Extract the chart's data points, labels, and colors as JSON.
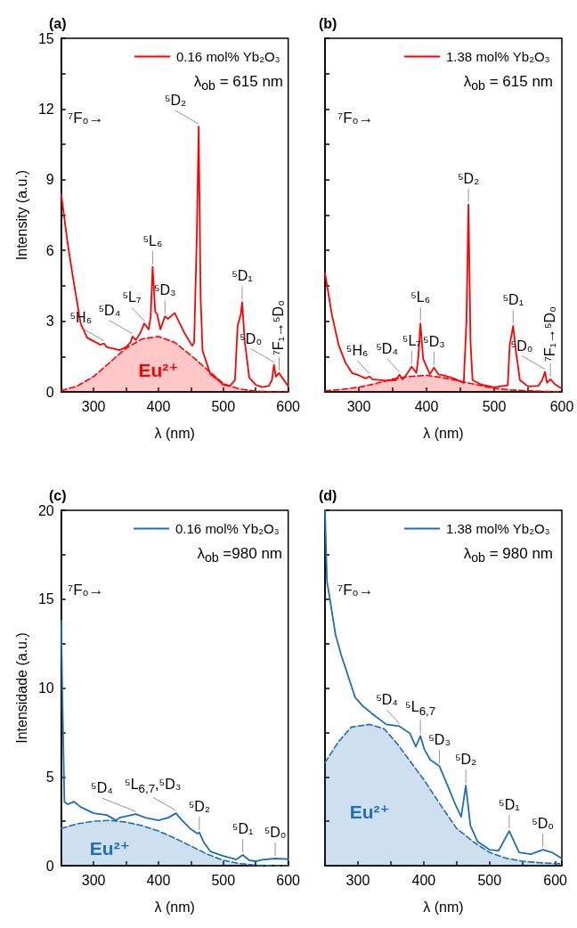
{
  "chart_data": [
    {
      "type": "line",
      "title": "(a)",
      "xlabel": "λ (nm)",
      "ylabel": "Intensity (a.u.)",
      "legend": "top right",
      "xlim": [
        250,
        600
      ],
      "xticks": [
        300,
        {
          "value": 350,
          "label": null
        },
        400,
        {
          "value": 450,
          "label": null
        },
        500,
        {
          "value": 550,
          "label": null
        },
        600
      ],
      "ylim": [
        0,
        15
      ],
      "yticks": [
        0,
        {
          "value": 1.5,
          "label": null
        },
        3,
        {
          "value": 4.5,
          "label": null
        },
        6,
        {
          "value": 7.5,
          "label": null
        },
        9,
        {
          "value": 10.5,
          "label": null
        },
        12,
        {
          "value": 13.5,
          "label": null
        },
        15
      ],
      "series": [
        {
          "name": "0.16 mol% Yb₂O₃",
          "color": "#ff0000",
          "x": [
            250,
            260,
            270,
            280,
            290,
            300,
            310,
            316,
            320,
            340,
            350,
            357,
            360,
            365,
            372,
            378,
            385,
            388,
            391,
            395,
            398,
            403,
            410,
            415,
            425,
            440,
            452,
            455,
            459,
            462,
            465,
            468,
            480,
            490,
            500,
            510,
            518,
            522,
            527,
            529,
            533,
            540,
            550,
            560,
            570,
            575,
            578,
            581,
            586,
            592,
            600
          ],
          "values": [
            8.4,
            6.3,
            4.55,
            2.9,
            2.3,
            2.15,
            2.0,
            2.05,
            1.9,
            1.77,
            1.9,
            2.1,
            2.35,
            2.2,
            2.5,
            2.9,
            2.65,
            3.2,
            5.3,
            3.4,
            3.3,
            2.65,
            3.2,
            3.1,
            3.35,
            2.5,
            1.95,
            2.1,
            6.5,
            11.25,
            4.0,
            1.75,
            0.75,
            0.55,
            0.3,
            0.25,
            0.5,
            2.8,
            3.3,
            3.8,
            2.15,
            0.6,
            0.3,
            0.2,
            0.25,
            0.5,
            1.15,
            0.65,
            0.8,
            0.55,
            0.25
          ]
        },
        {
          "name": "Eu²⁺",
          "type": "area",
          "line_style": "dashed",
          "color": "#ff0000",
          "x": [
            250,
            275,
            300,
            325,
            350,
            375,
            400,
            425,
            450,
            475,
            500,
            525,
            550,
            575,
            600
          ],
          "values": [
            0.05,
            0.25,
            0.65,
            1.25,
            1.85,
            2.25,
            2.35,
            2.1,
            1.55,
            0.95,
            0.35,
            0.12,
            0.03,
            0.0,
            0.0
          ]
        }
      ],
      "annotations": [
        "λ$_{ob}$ = 615 nm",
        "⁷F₀→",
        {
          "text": "⁵H₆",
          "x": 316,
          "y": 2.05
        },
        {
          "text": "⁵D₄",
          "x": 360,
          "y": 2.35
        },
        {
          "text": "⁵L₇",
          "x": 378,
          "y": 2.9
        },
        {
          "text": "⁵L₆",
          "x": 391,
          "y": 5.3
        },
        {
          "text": "⁵D₃",
          "x": 410,
          "y": 3.2
        },
        {
          "text": "⁵D₂",
          "x": 462,
          "y": 11.25
        },
        {
          "text": "⁵D₁",
          "x": 529,
          "y": 3.8
        },
        {
          "text": "⁵D₀",
          "x": 578,
          "y": 1.15
        },
        {
          "text": "⁷F₁→⁵D₀",
          "x": 586,
          "y": 0.8
        }
      ]
    },
    {
      "type": "line",
      "title": "(b)",
      "xlabel": "λ (nm)",
      "legend": "top right",
      "tick_labels": "x",
      "xlim": [
        250,
        600
      ],
      "xticks": [
        300,
        {
          "value": 350,
          "label": null
        },
        400,
        {
          "value": 450,
          "label": null
        },
        500,
        {
          "value": 550,
          "label": null
        },
        600
      ],
      "ylim": [
        0,
        15
      ],
      "yticks": [
        0,
        {
          "value": 1.5,
          "label": null
        },
        3,
        {
          "value": 4.5,
          "label": null
        },
        6,
        {
          "value": 7.5,
          "label": null
        },
        9,
        {
          "value": 10.5,
          "label": null
        },
        12,
        {
          "value": 13.5,
          "label": null
        },
        15
      ],
      "series": [
        {
          "name": "1.38 mol% Yb₂O₃",
          "color": "#ff0000",
          "x": [
            250,
            260,
            270,
            280,
            290,
            300,
            310,
            316,
            320,
            340,
            355,
            360,
            365,
            372,
            378,
            385,
            388,
            391,
            395,
            400,
            405,
            411,
            418,
            425,
            440,
            455,
            459,
            462,
            465,
            468,
            480,
            500,
            520,
            523,
            528,
            532,
            538,
            550,
            565,
            571,
            575,
            578,
            583,
            590,
            600
          ],
          "values": [
            5.05,
            3.3,
            2.0,
            1.25,
            0.8,
            0.7,
            0.57,
            0.65,
            0.53,
            0.48,
            0.5,
            0.73,
            0.53,
            0.8,
            1.07,
            0.8,
            1.5,
            2.9,
            1.4,
            1.07,
            0.75,
            1.03,
            0.73,
            0.7,
            0.57,
            0.38,
            3.0,
            7.95,
            2.15,
            0.5,
            0.32,
            0.19,
            0.28,
            2.0,
            2.8,
            1.75,
            0.5,
            0.23,
            0.25,
            0.5,
            0.85,
            0.38,
            0.53,
            0.32,
            0.13
          ]
        },
        {
          "type": "area",
          "line_style": "dashed",
          "color": "#ff0000",
          "x": [
            250,
            275,
            300,
            325,
            350,
            375,
            400,
            425,
            450,
            475,
            500,
            525,
            550,
            575,
            600
          ],
          "values": [
            0.05,
            0.1,
            0.2,
            0.35,
            0.55,
            0.65,
            0.7,
            0.6,
            0.45,
            0.3,
            0.15,
            0.08,
            0.05,
            0.02,
            0.0
          ]
        }
      ],
      "annotations": [
        "λ$_{ob}$ = 615 nm",
        "⁷F₀→",
        {
          "text": "⁵H₆",
          "x": 316,
          "y": 0.65
        },
        {
          "text": "⁵D₄",
          "x": 360,
          "y": 0.73
        },
        {
          "text": "⁵L₇",
          "x": 378,
          "y": 1.07
        },
        {
          "text": "⁵L₆",
          "x": 391,
          "y": 2.9
        },
        {
          "text": "⁵D₃",
          "x": 411,
          "y": 1.03
        },
        {
          "text": "⁵D₂",
          "x": 462,
          "y": 7.95
        },
        {
          "text": "⁵D₁",
          "x": 528,
          "y": 2.8
        },
        {
          "text": "⁵D₀",
          "x": 575,
          "y": 0.85
        },
        {
          "text": "⁷F₁→⁵D₀",
          "x": 583,
          "y": 0.53
        }
      ]
    },
    {
      "type": "line",
      "title": "(c)",
      "xlabel": "λ (nm)",
      "ylabel": "Intensidade (a.u.)",
      "legend": "top right",
      "xlim": [
        250,
        600
      ],
      "xticks": [
        300,
        {
          "value": 350,
          "label": null
        },
        400,
        {
          "value": 450,
          "label": null
        },
        500,
        {
          "value": 550,
          "label": null
        },
        600
      ],
      "ylim": [
        0,
        20
      ],
      "yticks": [
        0,
        {
          "value": 2.5,
          "label": null
        },
        5,
        {
          "value": 7.5,
          "label": null
        },
        10,
        {
          "value": 12.5,
          "label": null
        },
        15,
        {
          "value": 17.5,
          "label": null
        },
        20
      ],
      "series": [
        {
          "name": "0.16 mol% Yb₂O₃",
          "color": "#1f6eb4",
          "x": [
            250,
            252,
            255,
            260,
            270,
            280,
            300,
            320,
            335,
            340,
            365,
            380,
            400,
            415,
            427,
            435,
            450,
            460,
            463,
            470,
            480,
            500,
            520,
            530,
            540,
            550,
            560,
            580,
            600
          ],
          "values": [
            13.8,
            9.3,
            3.6,
            3.45,
            3.6,
            3.3,
            2.95,
            2.85,
            2.55,
            2.7,
            2.9,
            2.7,
            2.55,
            2.7,
            2.95,
            2.6,
            2.05,
            1.8,
            1.87,
            1.3,
            0.8,
            0.55,
            0.35,
            0.6,
            0.3,
            0.25,
            0.33,
            0.4,
            0.37
          ]
        },
        {
          "name": "Eu²⁺",
          "type": "area",
          "line_style": "dashed",
          "color": "#1f6eb4",
          "x": [
            250,
            275,
            300,
            325,
            350,
            375,
            400,
            425,
            450,
            475,
            500,
            525,
            550,
            575,
            600
          ],
          "values": [
            2.1,
            2.35,
            2.5,
            2.55,
            2.45,
            2.25,
            1.95,
            1.55,
            1.1,
            0.65,
            0.3,
            0.12,
            0.03,
            0.0,
            0.0
          ]
        }
      ],
      "annotations": [
        "λ$_{ob}$ =980 nm",
        "⁷F₀→",
        {
          "text": "⁵D₄",
          "x": 365,
          "y": 2.9
        },
        {
          "text": "⁵L$_{6,7}$,⁵D₃",
          "x": 427,
          "y": 2.95
        },
        {
          "text": "⁵D₂",
          "x": 463,
          "y": 1.87
        },
        {
          "text": "⁵D₁",
          "x": 530,
          "y": 0.6
        },
        {
          "text": "⁵D₀",
          "x": 580,
          "y": 0.4
        }
      ]
    },
    {
      "type": "line",
      "title": "(d)",
      "xlabel": "λ (nm)",
      "legend": "top right",
      "tick_labels": "x",
      "xlim": [
        250,
        610
      ],
      "xticks": [
        300,
        {
          "value": 350,
          "label": null
        },
        400,
        {
          "value": 450,
          "label": null
        },
        500,
        {
          "value": 550,
          "label": null
        },
        600
      ],
      "ylim": [
        0,
        20
      ],
      "yticks": [
        0,
        {
          "value": 2.5,
          "label": null
        },
        5,
        {
          "value": 7.5,
          "label": null
        },
        10,
        {
          "value": 12.5,
          "label": null
        },
        15,
        {
          "value": 17.5,
          "label": null
        },
        20
      ],
      "series": [
        {
          "name": "1.38 mol% Yb₂O₃",
          "color": "#1f6eb4",
          "x": [
            250,
            253,
            257,
            266,
            275,
            284,
            296,
            307,
            320,
            343,
            363,
            379,
            388,
            395,
            401,
            410,
            424,
            437,
            448,
            457,
            464,
            471,
            482,
            500,
            514,
            530,
            545,
            563,
            581,
            595,
            610
          ],
          "values": [
            20,
            16,
            15.1,
            13,
            11.8,
            10.8,
            9.45,
            9.0,
            8.6,
            7.95,
            7.85,
            7.45,
            6.7,
            7.3,
            6.55,
            5.95,
            5.6,
            4.45,
            3.45,
            2.75,
            4.5,
            2.25,
            1.35,
            0.9,
            0.85,
            1.95,
            0.75,
            0.65,
            0.9,
            0.75,
            0.4
          ]
        },
        {
          "name": "Eu²⁺",
          "type": "area",
          "line_style": "dashed",
          "color": "#1f6eb4",
          "x": [
            250,
            270,
            290,
            318,
            340,
            360,
            380,
            400,
            425,
            450,
            475,
            500,
            525,
            550,
            575,
            610
          ],
          "values": [
            5.8,
            6.95,
            7.8,
            7.95,
            7.7,
            6.85,
            5.85,
            4.85,
            3.45,
            2.1,
            1.35,
            0.75,
            0.42,
            0.25,
            0.17,
            0.1
          ]
        }
      ],
      "annotations": [
        "λ$_{ob}$ = 980 nm",
        "⁷F₀→",
        {
          "text": "⁵D₄",
          "x": 363,
          "y": 7.85
        },
        {
          "text": "⁵L$_{6,7}$",
          "x": 395,
          "y": 7.3
        },
        {
          "text": "⁵D₃",
          "x": 424,
          "y": 5.6
        },
        {
          "text": "⁵D₂",
          "x": 464,
          "y": 4.5
        },
        {
          "text": "⁵D₁",
          "x": 530,
          "y": 1.95
        },
        {
          "text": "⁵D₀",
          "x": 581,
          "y": 0.9
        }
      ]
    }
  ]
}
